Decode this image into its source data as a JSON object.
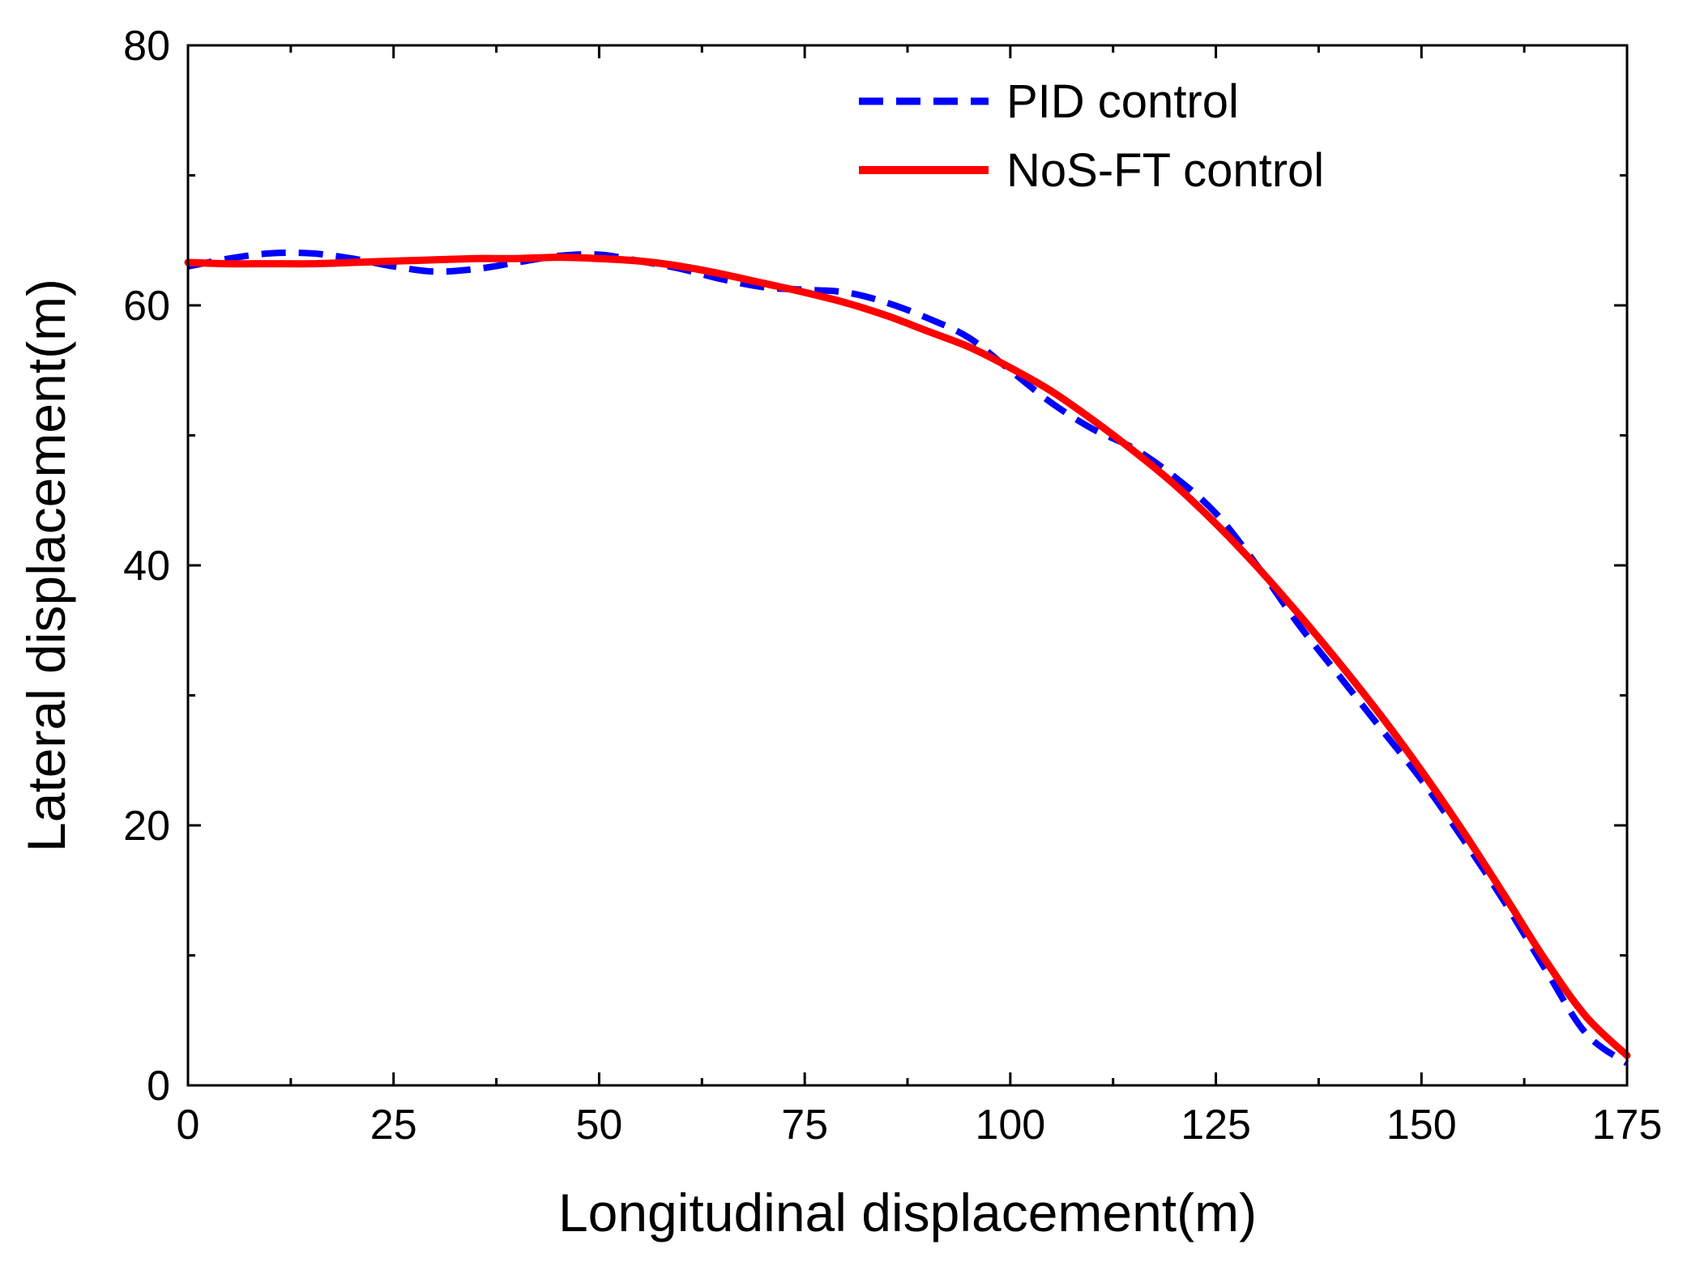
{
  "chart_data": {
    "type": "line",
    "title": "",
    "xlabel": "Longitudinal displacement(m)",
    "ylabel": "Lateral displacement(m)",
    "xlim": [
      0,
      175
    ],
    "ylim": [
      0,
      80
    ],
    "x_ticks": [
      0,
      25,
      50,
      75,
      100,
      125,
      150,
      175
    ],
    "y_ticks": [
      0,
      20,
      40,
      60,
      80
    ],
    "x_minor_step": 12.5,
    "y_minor_step": 10,
    "grid": false,
    "legend_position": "top-right",
    "series": [
      {
        "name": "PID control",
        "color": "#0000ff",
        "style": "dashed",
        "x": [
          0,
          5,
          10,
          15,
          20,
          25,
          30,
          35,
          40,
          45,
          50,
          55,
          60,
          65,
          70,
          75,
          80,
          85,
          90,
          95,
          100,
          105,
          110,
          115,
          120,
          125,
          130,
          135,
          140,
          145,
          150,
          155,
          160,
          165,
          170,
          175
        ],
        "y": [
          63.0,
          63.6,
          64.0,
          64.0,
          63.6,
          63.0,
          62.6,
          62.8,
          63.3,
          63.8,
          63.9,
          63.4,
          62.8,
          62.0,
          61.4,
          61.2,
          61.0,
          60.2,
          59.0,
          57.5,
          55.0,
          52.5,
          50.5,
          49.0,
          46.8,
          44.0,
          40.0,
          35.5,
          31.5,
          27.5,
          23.5,
          19.0,
          14.2,
          9.0,
          4.0,
          1.7
        ]
      },
      {
        "name": "NoS-FT control",
        "color": "#ff0000",
        "style": "solid",
        "x": [
          0,
          5,
          10,
          15,
          20,
          25,
          30,
          35,
          40,
          45,
          50,
          55,
          60,
          65,
          70,
          75,
          80,
          85,
          90,
          95,
          100,
          105,
          110,
          115,
          120,
          125,
          130,
          135,
          140,
          145,
          150,
          155,
          160,
          165,
          170,
          175
        ],
        "y": [
          63.3,
          63.2,
          63.2,
          63.2,
          63.3,
          63.4,
          63.5,
          63.6,
          63.6,
          63.7,
          63.6,
          63.4,
          63.0,
          62.4,
          61.7,
          61.0,
          60.2,
          59.2,
          58.0,
          56.8,
          55.2,
          53.4,
          51.2,
          48.8,
          46.2,
          43.2,
          39.9,
          36.3,
          32.5,
          28.5,
          24.2,
          19.6,
          14.7,
          9.7,
          5.3,
          2.3
        ]
      }
    ]
  }
}
